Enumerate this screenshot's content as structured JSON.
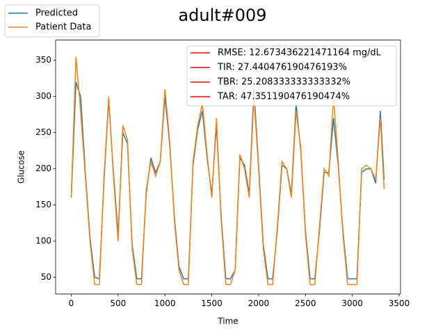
{
  "chart_data": {
    "type": "line",
    "title": "adult#009",
    "xlabel": "Time",
    "ylabel": "Glucose",
    "x": [
      0,
      50,
      100,
      150,
      200,
      250,
      300,
      350,
      400,
      450,
      500,
      550,
      600,
      650,
      700,
      750,
      800,
      850,
      900,
      950,
      1000,
      1050,
      1100,
      1150,
      1200,
      1250,
      1300,
      1350,
      1400,
      1450,
      1500,
      1550,
      1600,
      1650,
      1700,
      1750,
      1800,
      1850,
      1900,
      1950,
      2000,
      2050,
      2100,
      2150,
      2200,
      2250,
      2300,
      2350,
      2400,
      2450,
      2500,
      2550,
      2600,
      2650,
      2700,
      2750,
      2800,
      2850,
      2900,
      2950,
      3000,
      3050,
      3100,
      3150,
      3200,
      3250,
      3300,
      3340
    ],
    "series": [
      {
        "name": "Predicted",
        "color": "#1f77b4",
        "values": [
          160,
          320,
          300,
          195,
          105,
          50,
          48,
          185,
          295,
          195,
          110,
          250,
          235,
          95,
          48,
          48,
          165,
          215,
          195,
          210,
          300,
          235,
          135,
          65,
          48,
          48,
          205,
          255,
          280,
          215,
          165,
          260,
          135,
          48,
          48,
          60,
          215,
          205,
          165,
          310,
          205,
          95,
          48,
          48,
          115,
          205,
          200,
          165,
          290,
          225,
          115,
          48,
          48,
          115,
          195,
          195,
          270,
          205,
          115,
          48,
          48,
          48,
          195,
          200,
          200,
          180,
          280,
          185
        ]
      },
      {
        "name": "Patient Data",
        "color": "#ff7f0e",
        "values": [
          160,
          355,
          280,
          190,
          100,
          40,
          40,
          190,
          300,
          190,
          100,
          260,
          240,
          90,
          40,
          40,
          170,
          210,
          190,
          210,
          310,
          240,
          130,
          60,
          40,
          40,
          210,
          260,
          290,
          220,
          160,
          270,
          130,
          40,
          40,
          60,
          220,
          200,
          160,
          300,
          200,
          90,
          40,
          40,
          120,
          210,
          200,
          160,
          280,
          230,
          110,
          40,
          40,
          120,
          200,
          190,
          300,
          210,
          110,
          40,
          40,
          40,
          200,
          205,
          200,
          185,
          270,
          172
        ]
      }
    ],
    "annotations": [
      {
        "text": "RMSE: 12.673436221471164 mg/dL",
        "color": "#ff0000"
      },
      {
        "text": "TIR: 27.440476190476193%",
        "color": "#ff0000"
      },
      {
        "text": "TBR: 25.208333333333332%",
        "color": "#ff0000"
      },
      {
        "text": "TAR: 47.351190476190474%",
        "color": "#ff0000"
      }
    ],
    "xlim": [
      -167,
      3515
    ],
    "ylim": [
      27,
      378
    ],
    "xticks": [
      0,
      500,
      1000,
      1500,
      2000,
      2500,
      3000,
      3500
    ],
    "yticks": [
      50,
      100,
      150,
      200,
      250,
      300,
      350
    ],
    "legend": "upper left"
  }
}
